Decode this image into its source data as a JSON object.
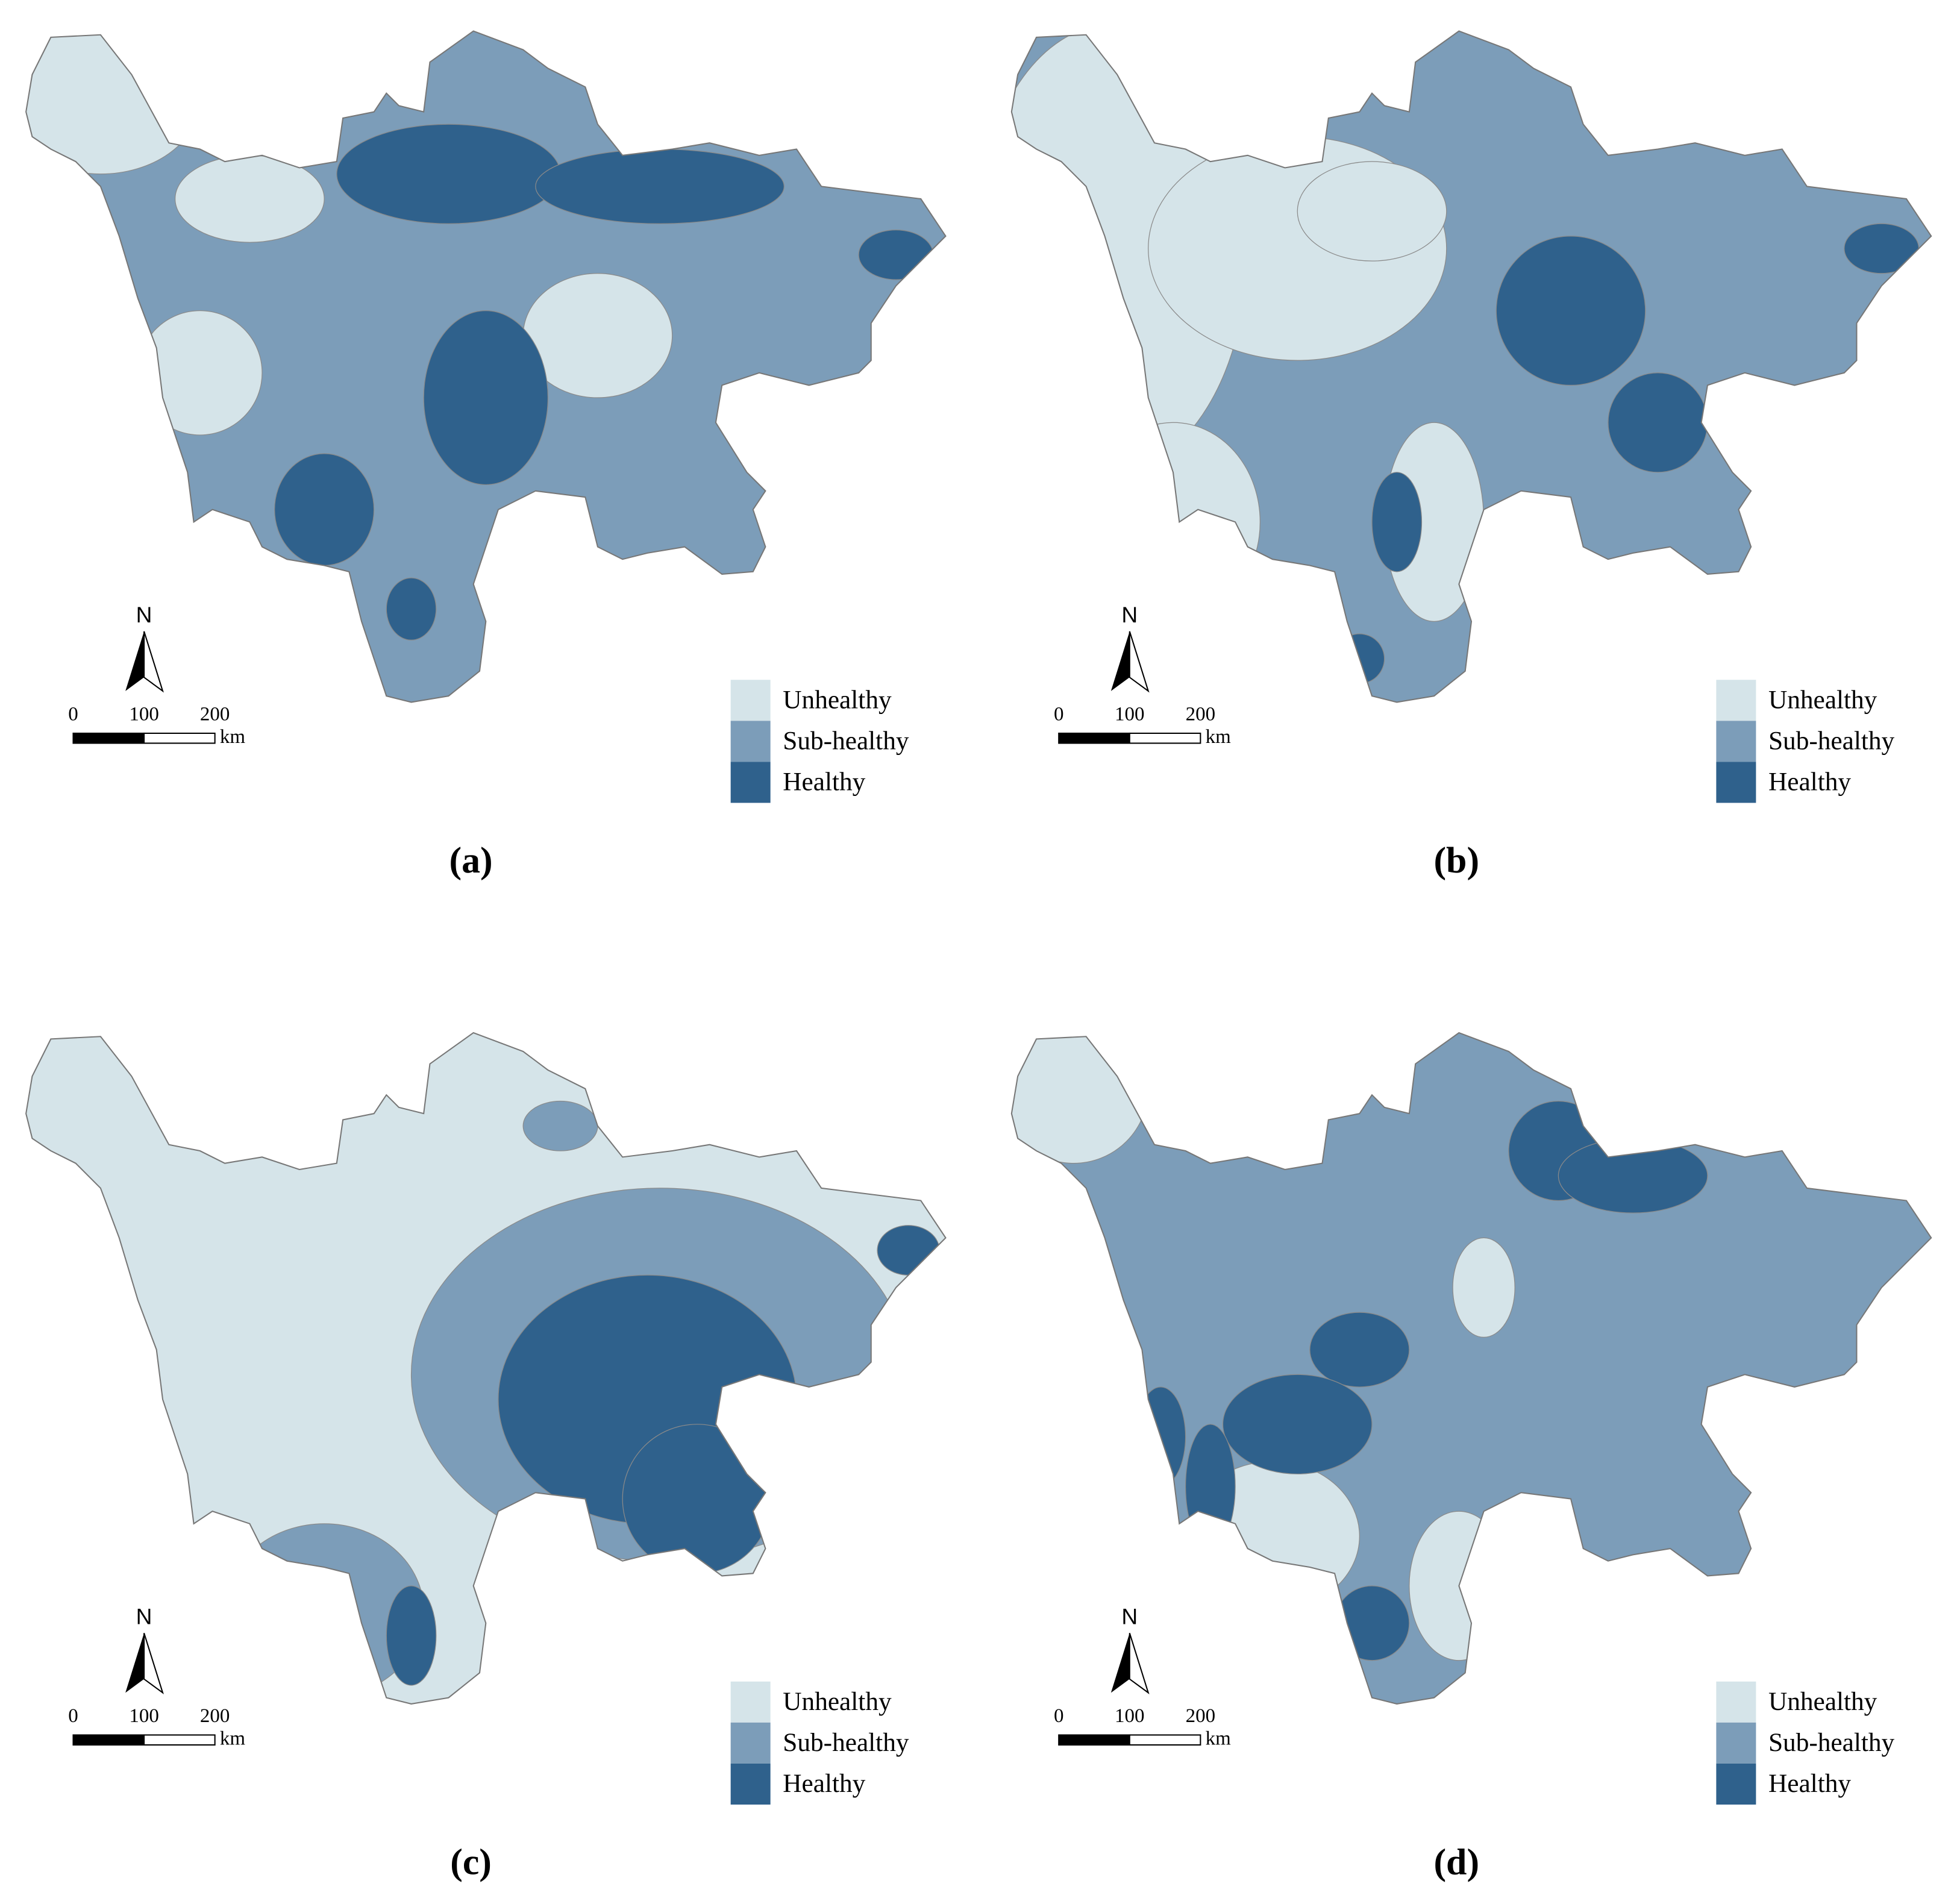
{
  "panels": [
    {
      "label": "(a)"
    },
    {
      "label": "(b)"
    },
    {
      "label": "(c)"
    },
    {
      "label": "(d)"
    }
  ],
  "legend": [
    {
      "label": "Unhealthy",
      "color": "#d5e4e9"
    },
    {
      "label": "Sub-healthy",
      "color": "#7c9db9"
    },
    {
      "label": "Healthy",
      "color": "#2f618c"
    }
  ],
  "north": "N",
  "scale_bar": {
    "ticks": [
      "0",
      "100",
      "200"
    ],
    "unit": "km"
  }
}
